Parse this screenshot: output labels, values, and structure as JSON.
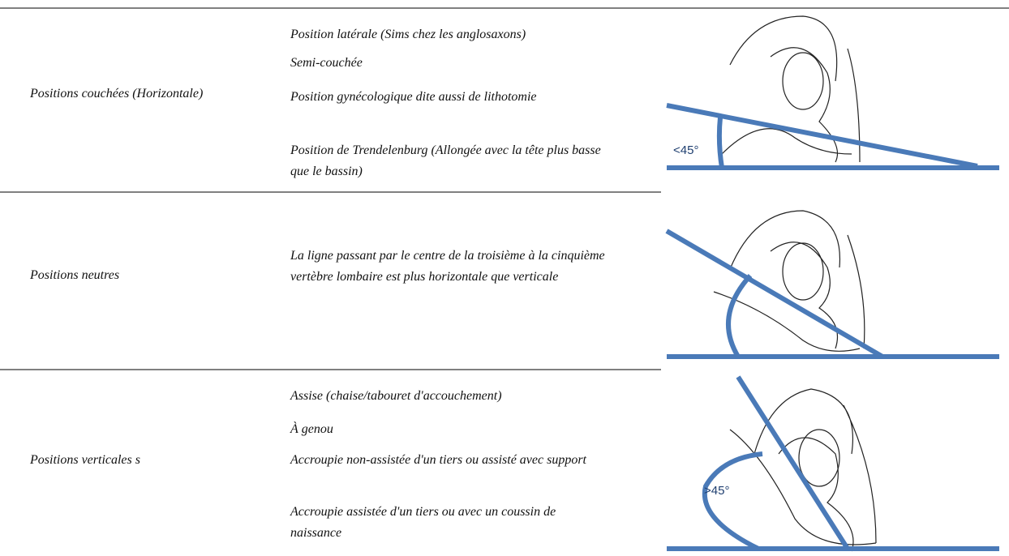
{
  "rows": [
    {
      "category": "Positions couchées (Horizontale)",
      "items": [
        "Position latérale (Sims chez les anglosaxons)",
        "Semi-couchée",
        "Position gynécologique dite aussi de lithotomie",
        "Position de Trendelenburg (Allongée avec la tête plus basse que le bassin)"
      ],
      "angle_label": "<45°"
    },
    {
      "category": "Positions neutres",
      "items": [
        "La ligne passant par le centre de la troisième à la cinquième vertèbre lombaire est plus horizontale que verticale"
      ]
    },
    {
      "category": "Positions verticales s",
      "items": [
        "Assise (chaise/tabouret d'accouchement)",
        "À genou",
        "Accroupie non-assistée d'un tiers ou assisté avec support",
        "Accroupie assistée d'un tiers ou avec un coussin de naissance"
      ],
      "angle_label": ">45°"
    }
  ]
}
